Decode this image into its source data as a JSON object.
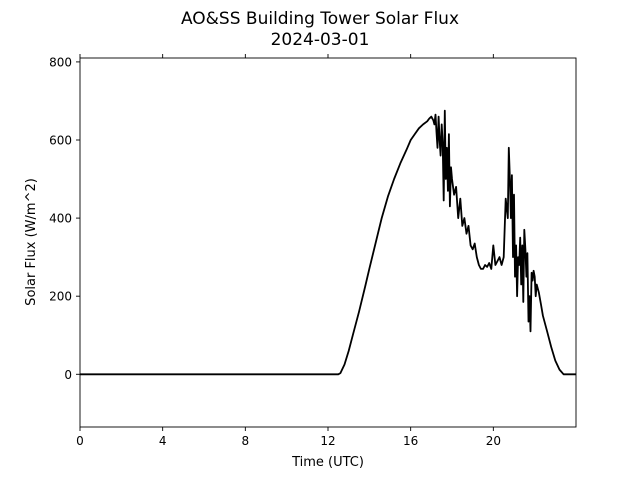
{
  "chart_data": {
    "type": "line",
    "title": "AO&SS Building Tower Solar Flux",
    "subtitle": "2024-03-01",
    "xlabel": "Time (UTC)",
    "ylabel": "Solar Flux (W/m^2)",
    "xlim": [
      0,
      24
    ],
    "ylim": [
      -135,
      810
    ],
    "x_ticks": [
      0,
      4,
      8,
      12,
      16,
      20
    ],
    "x_tick_labels": [
      "0",
      "4",
      "8",
      "12",
      "16",
      "20"
    ],
    "y_ticks": [
      0,
      200,
      400,
      600,
      800
    ],
    "y_tick_labels": [
      "0",
      "200",
      "400",
      "600",
      "800"
    ],
    "grid": false,
    "line_color": "#000000",
    "series": [
      {
        "x": [
          0,
          12.5,
          12.6,
          12.8,
          13.0,
          13.2,
          13.5,
          13.8,
          14.0,
          14.3,
          14.6,
          14.9,
          15.2,
          15.5,
          15.8,
          16.0,
          16.2,
          16.4,
          16.6,
          16.8,
          16.9,
          17.0,
          17.1,
          17.15,
          17.2,
          17.25,
          17.3,
          17.35,
          17.4,
          17.45,
          17.5,
          17.55,
          17.6,
          17.65,
          17.7,
          17.75,
          17.8,
          17.85,
          17.9,
          17.95,
          18.0,
          18.1,
          18.2,
          18.3,
          18.4,
          18.5,
          18.6,
          18.7,
          18.8,
          18.9,
          19.0,
          19.1,
          19.2,
          19.3,
          19.4,
          19.5,
          19.6,
          19.7,
          19.8,
          19.9,
          20.0,
          20.1,
          20.2,
          20.3,
          20.4,
          20.5,
          20.6,
          20.7,
          20.75,
          20.8,
          20.85,
          20.9,
          20.95,
          21.0,
          21.05,
          21.1,
          21.15,
          21.2,
          21.25,
          21.3,
          21.35,
          21.4,
          21.45,
          21.5,
          21.55,
          21.6,
          21.65,
          21.7,
          21.75,
          21.8,
          21.85,
          21.9,
          21.95,
          22.0,
          22.05,
          22.1,
          22.2,
          22.3,
          22.4,
          22.6,
          22.8,
          23.0,
          23.2,
          23.4,
          23.6,
          23.8,
          23.9,
          24.0
        ],
        "y": [
          0,
          0,
          3,
          25,
          60,
          100,
          160,
          225,
          270,
          335,
          400,
          455,
          500,
          540,
          575,
          600,
          615,
          630,
          640,
          648,
          655,
          660,
          650,
          640,
          665,
          620,
          580,
          660,
          600,
          560,
          640,
          590,
          445,
          675,
          500,
          580,
          470,
          615,
          430,
          530,
          500,
          460,
          480,
          400,
          450,
          380,
          400,
          360,
          380,
          330,
          320,
          335,
          300,
          280,
          270,
          270,
          280,
          275,
          285,
          270,
          330,
          280,
          290,
          300,
          280,
          300,
          450,
          400,
          580,
          500,
          400,
          510,
          300,
          460,
          250,
          330,
          200,
          300,
          280,
          350,
          230,
          330,
          185,
          370,
          320,
          250,
          310,
          135,
          200,
          110,
          260,
          240,
          265,
          250,
          200,
          230,
          210,
          180,
          150,
          110,
          70,
          35,
          12,
          0,
          0,
          0,
          0,
          0
        ]
      }
    ]
  }
}
